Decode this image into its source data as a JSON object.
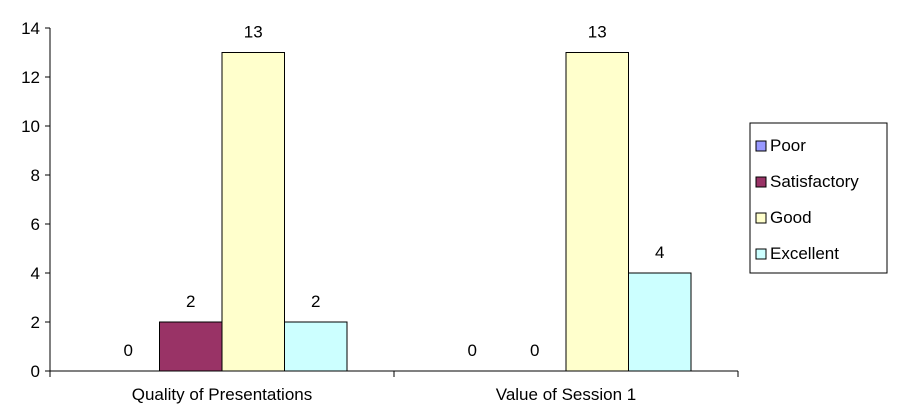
{
  "chart_data": {
    "type": "bar",
    "title": "",
    "xlabel": "",
    "ylabel": "",
    "categories": [
      "Quality of Presentations",
      "Value of Session 1"
    ],
    "series": [
      {
        "name": "Poor",
        "values": [
          0,
          0
        ],
        "color": "#9999FF"
      },
      {
        "name": "Satisfactory",
        "values": [
          2,
          0
        ],
        "color": "#993366"
      },
      {
        "name": "Good",
        "values": [
          13,
          13
        ],
        "color": "#FFFFCC"
      },
      {
        "name": "Excellent",
        "values": [
          2,
          4
        ],
        "color": "#CCFFFF"
      }
    ],
    "ylim": [
      0,
      14
    ],
    "yticks": [
      0,
      2,
      4,
      6,
      8,
      10,
      12,
      14
    ],
    "data_labels": true,
    "grid": false,
    "legend": "right"
  }
}
